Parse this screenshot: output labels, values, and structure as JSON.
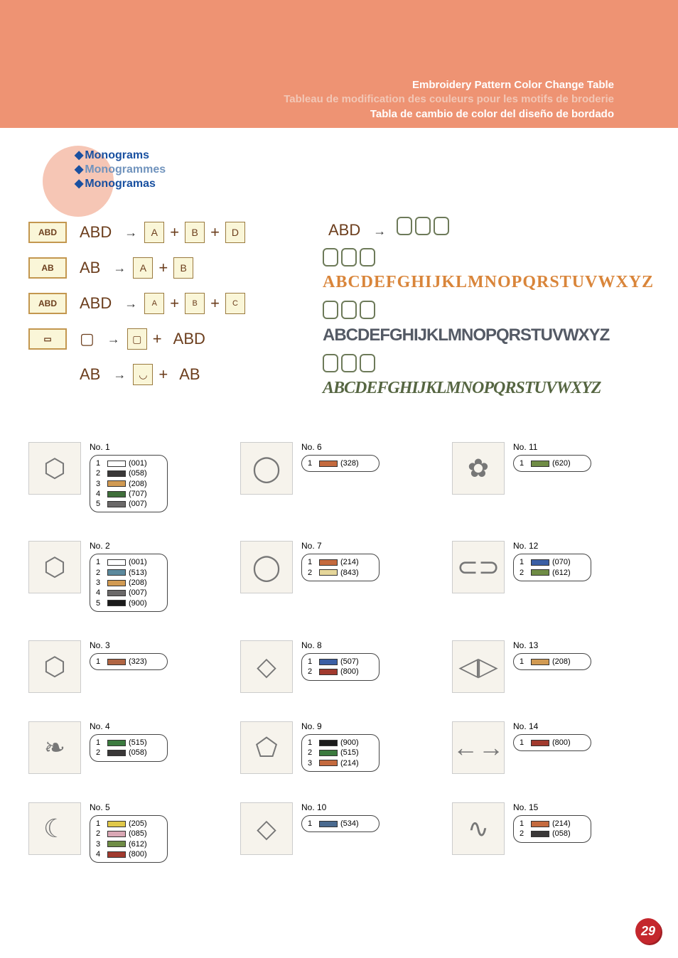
{
  "banner": {
    "bg": "#ee9373",
    "title_en": "Embroidery Pattern Color Change Table",
    "title_fr": "Tableau de modification des couleurs pour les motifs de broderie",
    "title_es": "Tabla de cambio de color del diseño de bordado"
  },
  "section": {
    "en": "Monograms",
    "fr": "Monogrammes",
    "es": "Monogramas",
    "bullet_color": "#1950a0",
    "circle_bg": "#f6c6b5"
  },
  "diagram_tags": [
    "ABD",
    "AB",
    "ABD",
    "",
    ""
  ],
  "alphabets": {
    "orange": "ABCDEFGHIJKLMNOPQRSTUVWXYZ",
    "grey": "ABCDEFGHIJKLMNOPQRSTUVWXYZ",
    "green": "ABCDEFGHIJKLMNOPQRSTUVWXYZ"
  },
  "patterns": [
    {
      "no": "No. 1",
      "glyph": "⬡",
      "colors": [
        {
          "n": "1",
          "hex": "#ffffff",
          "code": "(001)"
        },
        {
          "n": "2",
          "hex": "#3a3838",
          "code": "(058)"
        },
        {
          "n": "3",
          "hex": "#d19a52",
          "code": "(208)"
        },
        {
          "n": "4",
          "hex": "#3f6e3a",
          "code": "(707)"
        },
        {
          "n": "5",
          "hex": "#6b6969",
          "code": "(007)"
        }
      ]
    },
    {
      "no": "No. 6",
      "glyph": "◯",
      "colors": [
        {
          "n": "1",
          "hex": "#c46a3e",
          "code": "(328)"
        }
      ]
    },
    {
      "no": "No. 11",
      "glyph": "✿",
      "colors": [
        {
          "n": "1",
          "hex": "#6f8c45",
          "code": "(620)"
        }
      ]
    },
    {
      "no": "No. 2",
      "glyph": "⬡",
      "colors": [
        {
          "n": "1",
          "hex": "#ffffff",
          "code": "(001)"
        },
        {
          "n": "2",
          "hex": "#5c8a9e",
          "code": "(513)"
        },
        {
          "n": "3",
          "hex": "#d19a52",
          "code": "(208)"
        },
        {
          "n": "4",
          "hex": "#6b6969",
          "code": "(007)"
        },
        {
          "n": "5",
          "hex": "#1b1b1b",
          "code": "(900)"
        }
      ]
    },
    {
      "no": "No. 7",
      "glyph": "◯",
      "colors": [
        {
          "n": "1",
          "hex": "#c46a3e",
          "code": "(214)"
        },
        {
          "n": "2",
          "hex": "#e5d69a",
          "code": "(843)"
        }
      ]
    },
    {
      "no": "No. 12",
      "glyph": "⊂⊃",
      "colors": [
        {
          "n": "1",
          "hex": "#3b5fa4",
          "code": "(070)"
        },
        {
          "n": "2",
          "hex": "#6f8c45",
          "code": "(612)"
        }
      ]
    },
    {
      "no": "No. 3",
      "glyph": "⬡",
      "colors": [
        {
          "n": "1",
          "hex": "#b06543",
          "code": "(323)"
        }
      ]
    },
    {
      "no": "No. 8",
      "glyph": "◇",
      "colors": [
        {
          "n": "1",
          "hex": "#3b5fa4",
          "code": "(507)"
        },
        {
          "n": "2",
          "hex": "#a13a2e",
          "code": "(800)"
        }
      ]
    },
    {
      "no": "No. 13",
      "glyph": "◁▷",
      "colors": [
        {
          "n": "1",
          "hex": "#d19a52",
          "code": "(208)"
        }
      ]
    },
    {
      "no": "No. 4",
      "glyph": "❧",
      "colors": [
        {
          "n": "1",
          "hex": "#3b7a3e",
          "code": "(515)"
        },
        {
          "n": "2",
          "hex": "#3a3838",
          "code": "(058)"
        }
      ]
    },
    {
      "no": "No. 9",
      "glyph": "⬠",
      "colors": [
        {
          "n": "1",
          "hex": "#1b1b1b",
          "code": "(900)"
        },
        {
          "n": "2",
          "hex": "#3b7a3e",
          "code": "(515)"
        },
        {
          "n": "3",
          "hex": "#c46a3e",
          "code": "(214)"
        }
      ]
    },
    {
      "no": "No. 14",
      "glyph": "←→",
      "colors": [
        {
          "n": "1",
          "hex": "#a13a2e",
          "code": "(800)"
        }
      ]
    },
    {
      "no": "No. 5",
      "glyph": "☾",
      "colors": [
        {
          "n": "1",
          "hex": "#e0c84a",
          "code": "(205)"
        },
        {
          "n": "2",
          "hex": "#d9a7b4",
          "code": "(085)"
        },
        {
          "n": "3",
          "hex": "#6f8c45",
          "code": "(612)"
        },
        {
          "n": "4",
          "hex": "#a13a2e",
          "code": "(800)"
        }
      ]
    },
    {
      "no": "No. 10",
      "glyph": "◇",
      "colors": [
        {
          "n": "1",
          "hex": "#4a6a8f",
          "code": "(534)"
        }
      ]
    },
    {
      "no": "No. 15",
      "glyph": "∿",
      "colors": [
        {
          "n": "1",
          "hex": "#c46a3e",
          "code": "(214)"
        },
        {
          "n": "2",
          "hex": "#3a3838",
          "code": "(058)"
        }
      ]
    }
  ],
  "page_number": "29"
}
